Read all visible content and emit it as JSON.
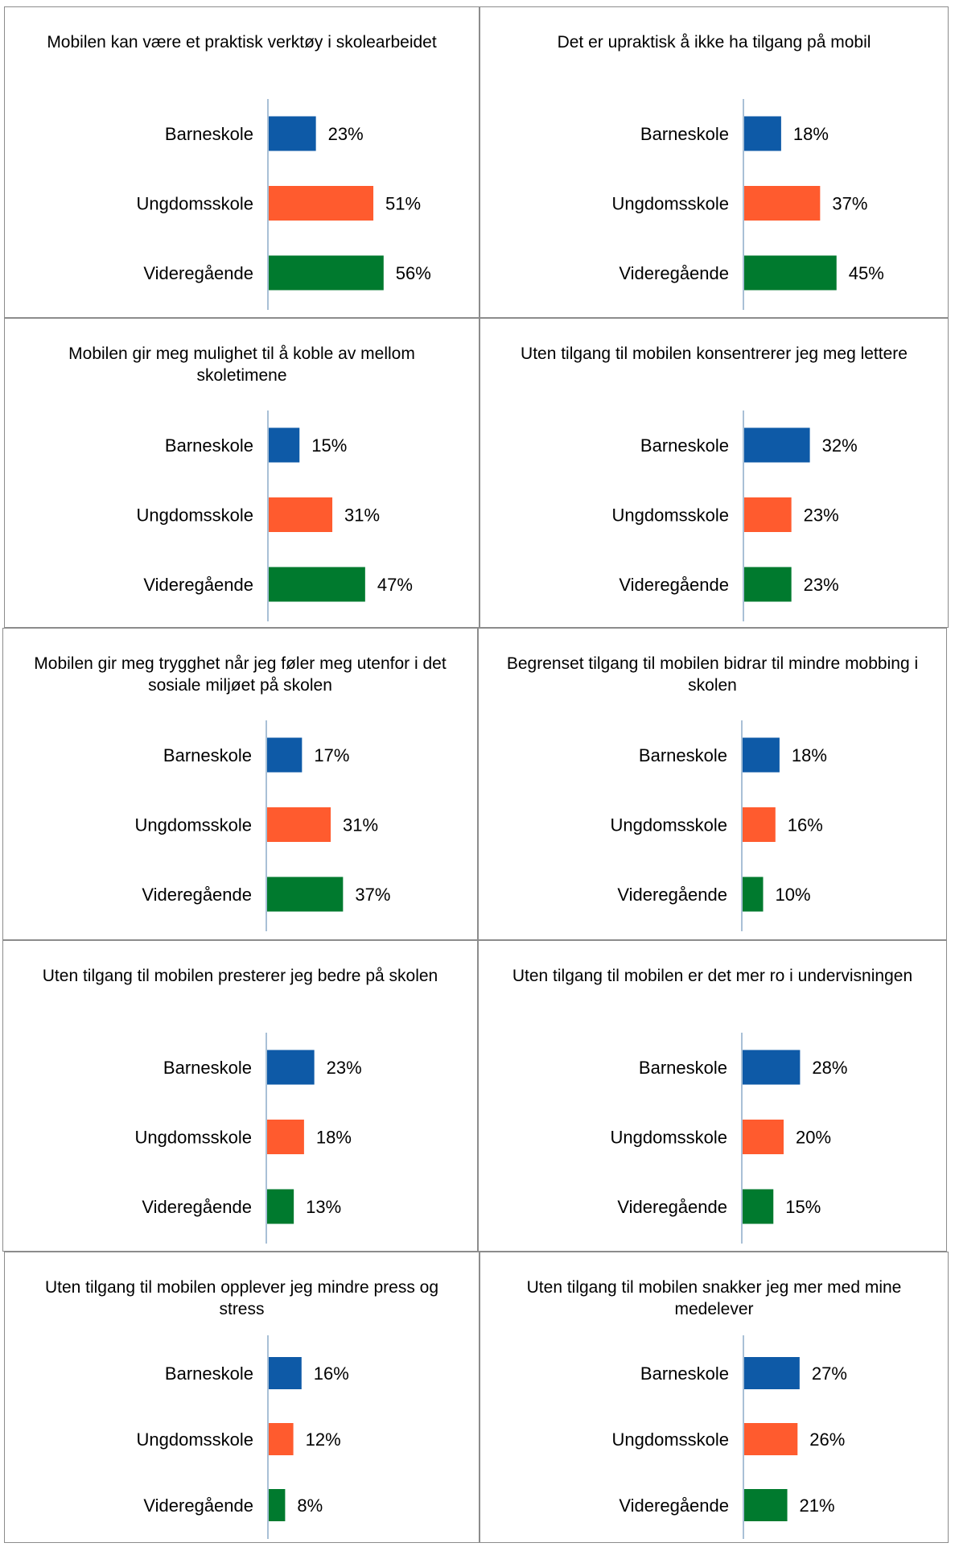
{
  "chart_data": [
    {
      "type": "bar",
      "title": "Mobilen kan være et praktisk verktøy i skolearbeidet",
      "categories": [
        "Barneskole",
        "Ungdomsskole",
        "Videregående"
      ],
      "values": [
        23,
        51,
        56
      ],
      "value_labels": [
        "23%",
        "51%",
        "56%"
      ]
    },
    {
      "type": "bar",
      "title": "Det er upraktisk å ikke ha tilgang på mobil",
      "categories": [
        "Barneskole",
        "Ungdomsskole",
        "Videregående"
      ],
      "values": [
        18,
        37,
        45
      ],
      "value_labels": [
        "18%",
        "37%",
        "45%"
      ]
    },
    {
      "type": "bar",
      "title": "Mobilen gir meg mulighet til å koble av mellom skoletimene",
      "categories": [
        "Barneskole",
        "Ungdomsskole",
        "Videregående"
      ],
      "values": [
        15,
        31,
        47
      ],
      "value_labels": [
        "15%",
        "31%",
        "47%"
      ]
    },
    {
      "type": "bar",
      "title": "Uten tilgang til mobilen  konsentrerer jeg meg lettere",
      "categories": [
        "Barneskole",
        "Ungdomsskole",
        "Videregående"
      ],
      "values": [
        32,
        23,
        23
      ],
      "value_labels": [
        "32%",
        "23%",
        "23%"
      ]
    },
    {
      "type": "bar",
      "title": "Mobilen gir meg trygghet når jeg føler meg utenfor i det sosiale miljøet på skolen",
      "categories": [
        "Barneskole",
        "Ungdomsskole",
        "Videregående"
      ],
      "values": [
        17,
        31,
        37
      ],
      "value_labels": [
        "17%",
        "31%",
        "37%"
      ]
    },
    {
      "type": "bar",
      "title": "Begrenset tilgang til mobilen bidrar til mindre mobbing i skolen",
      "categories": [
        "Barneskole",
        "Ungdomsskole",
        "Videregående"
      ],
      "values": [
        18,
        16,
        10
      ],
      "value_labels": [
        "18%",
        "16%",
        "10%"
      ]
    },
    {
      "type": "bar",
      "title": "Uten tilgang til mobilen presterer jeg bedre på skolen",
      "categories": [
        "Barneskole",
        "Ungdomsskole",
        "Videregående"
      ],
      "values": [
        23,
        18,
        13
      ],
      "value_labels": [
        "23%",
        "18%",
        "13%"
      ]
    },
    {
      "type": "bar",
      "title": "Uten tilgang til mobilen er det mer ro i undervisningen",
      "categories": [
        "Barneskole",
        "Ungdomsskole",
        "Videregående"
      ],
      "values": [
        28,
        20,
        15
      ],
      "value_labels": [
        "28%",
        "20%",
        "15%"
      ]
    },
    {
      "type": "bar",
      "title": "Uten tilgang til mobilen opplever jeg mindre press og stress",
      "categories": [
        "Barneskole",
        "Ungdomsskole",
        "Videregående"
      ],
      "values": [
        16,
        12,
        8
      ],
      "value_labels": [
        "16%",
        "12%",
        "8%"
      ]
    },
    {
      "type": "bar",
      "title": "Uten tilgang til mobilen snakker jeg mer med mine medelever",
      "categories": [
        "Barneskole",
        "Ungdomsskole",
        "Videregående"
      ],
      "values": [
        27,
        26,
        21
      ],
      "value_labels": [
        "27%",
        "26%",
        "21%"
      ]
    }
  ],
  "colors": {
    "Barneskole": "#0e5aa7",
    "Ungdomsskole": "#ff5b2e",
    "Videregående": "#007a2e",
    "axis": "#a9c0d6"
  }
}
